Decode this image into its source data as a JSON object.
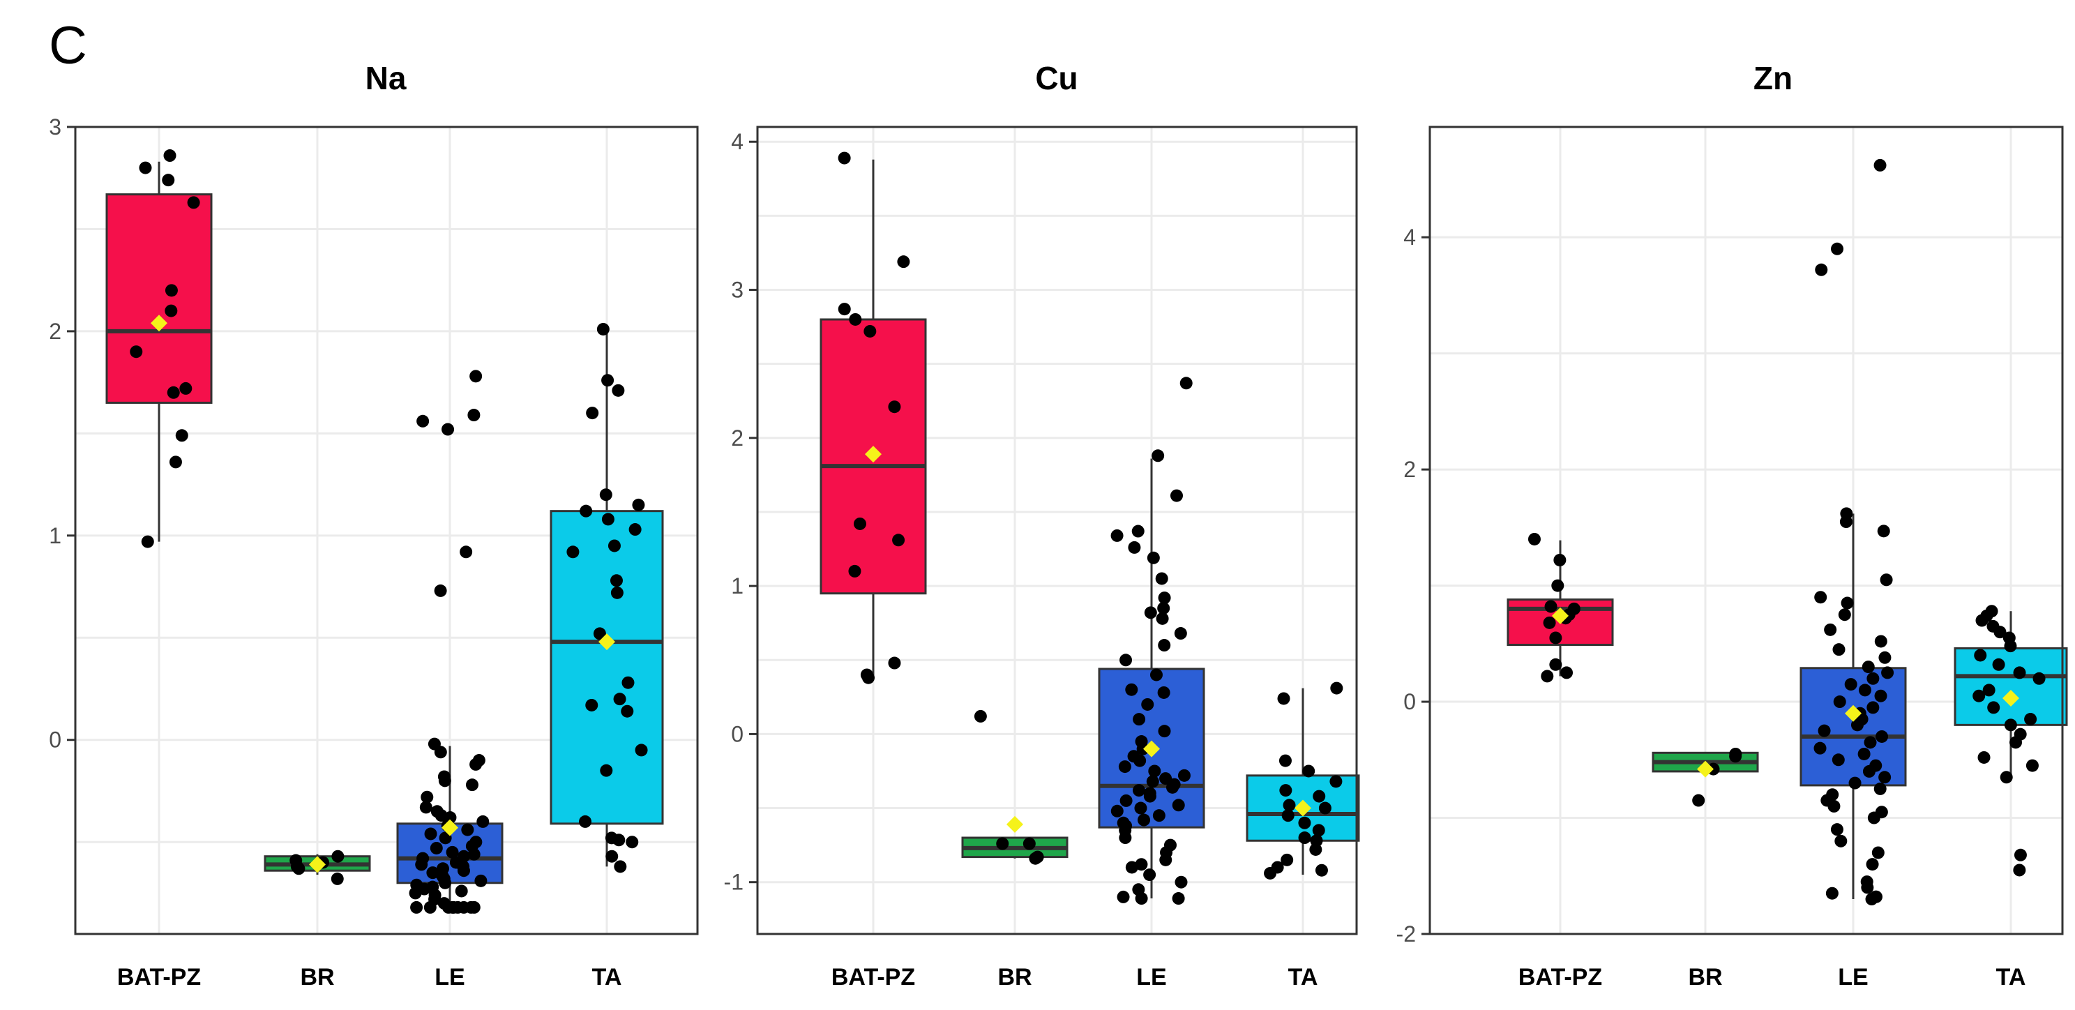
{
  "panel_label": "C",
  "colors": {
    "BAT-PZ": "#f5104b",
    "BR": "#1fa64a",
    "LE": "#2c5fd6",
    "TA": "#0bcbe9",
    "mean_marker": "#f5f21a",
    "points": "#000000",
    "median_line": "#333333"
  },
  "chart_data": [
    {
      "type": "box",
      "title": "Na",
      "categories": [
        "BAT-PZ",
        "BR",
        "LE",
        "TA"
      ],
      "ylim": [
        -0.95,
        3.0
      ],
      "yticks": [
        0,
        1,
        2,
        3
      ],
      "boxes": [
        {
          "category": "BAT-PZ",
          "q1": 1.65,
          "median": 2.0,
          "q3": 2.67,
          "lower_whisker": 0.97,
          "upper_whisker": 2.83,
          "mean": 2.04
        },
        {
          "category": "BR",
          "q1": -0.64,
          "median": -0.61,
          "q3": -0.57,
          "lower_whisker": -0.66,
          "upper_whisker": -0.56,
          "mean": -0.61
        },
        {
          "category": "LE",
          "q1": -0.7,
          "median": -0.58,
          "q3": -0.41,
          "lower_whisker": -0.82,
          "upper_whisker": -0.03,
          "mean": -0.43
        },
        {
          "category": "TA",
          "q1": -0.41,
          "median": 0.48,
          "q3": 1.12,
          "lower_whisker": -0.62,
          "upper_whisker": 2.01,
          "mean": 0.48
        }
      ],
      "points": [
        {
          "category": "BAT-PZ",
          "values": [
            2.86,
            2.8,
            2.74,
            2.63,
            2.2,
            2.1,
            1.9,
            1.72,
            1.7,
            1.49,
            1.36,
            0.97
          ]
        },
        {
          "category": "BR",
          "values": [
            -0.57,
            -0.59,
            -0.6,
            -0.63,
            -0.62,
            -0.68
          ]
        },
        {
          "category": "LE",
          "values": [
            1.78,
            1.59,
            1.56,
            1.52,
            0.92,
            0.73,
            -0.02,
            -0.06,
            -0.1,
            -0.12,
            -0.18,
            -0.2,
            -0.22,
            -0.28,
            -0.33,
            -0.35,
            -0.37,
            -0.38,
            -0.4,
            -0.42,
            -0.44,
            -0.46,
            -0.48,
            -0.5,
            -0.52,
            -0.53,
            -0.55,
            -0.56,
            -0.57,
            -0.58,
            -0.6,
            -0.61,
            -0.62,
            -0.63,
            -0.64,
            -0.65,
            -0.66,
            -0.67,
            -0.68,
            -0.69,
            -0.7,
            -0.71,
            -0.72,
            -0.73,
            -0.74,
            -0.75,
            -0.76,
            -0.78,
            -0.8,
            -0.82,
            -0.82,
            -0.82,
            -0.82,
            -0.82,
            -0.82,
            -0.82,
            -0.82,
            -0.82
          ]
        },
        {
          "category": "TA",
          "values": [
            2.01,
            1.76,
            1.71,
            1.6,
            1.2,
            1.15,
            1.12,
            1.08,
            1.03,
            0.95,
            0.92,
            0.78,
            0.72,
            0.52,
            0.28,
            0.2,
            0.17,
            0.14,
            -0.05,
            -0.15,
            -0.4,
            -0.48,
            -0.49,
            -0.5,
            -0.57,
            -0.62
          ]
        }
      ]
    },
    {
      "type": "box",
      "title": "Cu",
      "categories": [
        "BAT-PZ",
        "BR",
        "LE",
        "TA"
      ],
      "ylim": [
        -1.35,
        4.1
      ],
      "yticks": [
        -1,
        0,
        1,
        2,
        3,
        4
      ],
      "boxes": [
        {
          "category": "BAT-PZ",
          "q1": 0.95,
          "median": 1.81,
          "q3": 2.8,
          "lower_whisker": 0.37,
          "upper_whisker": 3.88,
          "mean": 1.89
        },
        {
          "category": "BR",
          "q1": -0.83,
          "median": -0.77,
          "q3": -0.7,
          "lower_whisker": -0.84,
          "upper_whisker": -0.7,
          "mean": -0.61
        },
        {
          "category": "LE",
          "q1": -0.63,
          "median": -0.35,
          "q3": 0.44,
          "lower_whisker": -1.11,
          "upper_whisker": 1.86,
          "mean": -0.1
        },
        {
          "category": "TA",
          "q1": -0.72,
          "median": -0.54,
          "q3": -0.28,
          "lower_whisker": -0.95,
          "upper_whisker": 0.31,
          "mean": -0.5
        }
      ],
      "points": [
        {
          "category": "BAT-PZ",
          "values": [
            3.89,
            3.19,
            2.87,
            2.8,
            2.72,
            2.21,
            1.42,
            1.31,
            1.1,
            0.48,
            0.4,
            0.38
          ]
        },
        {
          "category": "BR",
          "values": [
            0.12,
            -0.74,
            -0.74,
            -0.83,
            -0.84
          ]
        },
        {
          "category": "LE",
          "values": [
            2.37,
            1.88,
            1.61,
            1.37,
            1.34,
            1.26,
            1.19,
            1.05,
            0.92,
            0.85,
            0.82,
            0.78,
            0.68,
            0.6,
            0.5,
            0.4,
            0.3,
            0.28,
            0.2,
            0.1,
            0.02,
            -0.05,
            -0.1,
            -0.15,
            -0.18,
            -0.22,
            -0.25,
            -0.28,
            -0.3,
            -0.32,
            -0.34,
            -0.36,
            -0.38,
            -0.4,
            -0.42,
            -0.45,
            -0.48,
            -0.5,
            -0.52,
            -0.55,
            -0.58,
            -0.6,
            -0.62,
            -0.65,
            -0.7,
            -0.75,
            -0.8,
            -0.85,
            -0.88,
            -0.9,
            -0.95,
            -1.0,
            -1.05,
            -1.1,
            -1.11,
            -1.11
          ]
        },
        {
          "category": "TA",
          "values": [
            0.31,
            0.24,
            -0.18,
            -0.25,
            -0.32,
            -0.38,
            -0.42,
            -0.48,
            -0.5,
            -0.55,
            -0.6,
            -0.65,
            -0.7,
            -0.72,
            -0.78,
            -0.85,
            -0.9,
            -0.92,
            -0.94
          ]
        }
      ]
    },
    {
      "type": "box",
      "title": "Zn",
      "categories": [
        "BAT-PZ",
        "BR",
        "LE",
        "TA"
      ],
      "ylim": [
        -2.0,
        4.95
      ],
      "yticks": [
        -2,
        0,
        2,
        4
      ],
      "boxes": [
        {
          "category": "BAT-PZ",
          "q1": 0.49,
          "median": 0.8,
          "q3": 0.88,
          "lower_whisker": 0.22,
          "upper_whisker": 1.39,
          "mean": 0.74
        },
        {
          "category": "BR",
          "q1": -0.6,
          "median": -0.52,
          "q3": -0.44,
          "lower_whisker": -0.6,
          "upper_whisker": -0.44,
          "mean": -0.58
        },
        {
          "category": "LE",
          "q1": -0.72,
          "median": -0.3,
          "q3": 0.29,
          "lower_whisker": -1.7,
          "upper_whisker": 1.62,
          "mean": -0.1
        },
        {
          "category": "TA",
          "q1": -0.2,
          "median": 0.22,
          "q3": 0.46,
          "lower_whisker": -0.65,
          "upper_whisker": 0.78,
          "mean": 0.03
        }
      ],
      "points": [
        {
          "category": "BAT-PZ",
          "values": [
            1.4,
            1.22,
            1.0,
            0.82,
            0.8,
            0.75,
            0.72,
            0.68,
            0.55,
            0.32,
            0.25,
            0.22
          ]
        },
        {
          "category": "BR",
          "values": [
            -0.45,
            -0.47,
            -0.58,
            -0.85
          ]
        },
        {
          "category": "LE",
          "values": [
            4.62,
            3.9,
            3.72,
            1.62,
            1.55,
            1.47,
            1.05,
            0.9,
            0.85,
            0.75,
            0.62,
            0.52,
            0.45,
            0.38,
            0.3,
            0.25,
            0.2,
            0.15,
            0.1,
            0.05,
            0.0,
            -0.05,
            -0.1,
            -0.15,
            -0.2,
            -0.25,
            -0.3,
            -0.35,
            -0.4,
            -0.45,
            -0.5,
            -0.55,
            -0.6,
            -0.65,
            -0.7,
            -0.75,
            -0.8,
            -0.85,
            -0.9,
            -0.95,
            -1.0,
            -1.1,
            -1.2,
            -1.3,
            -1.4,
            -1.55,
            -1.6,
            -1.65,
            -1.68,
            -1.68,
            -1.7
          ]
        },
        {
          "category": "TA",
          "values": [
            0.78,
            0.74,
            0.7,
            0.65,
            0.6,
            0.55,
            0.48,
            0.4,
            0.32,
            0.25,
            0.2,
            0.1,
            0.05,
            -0.05,
            -0.15,
            -0.2,
            -0.28,
            -0.35,
            -0.48,
            -0.55,
            -0.65,
            -1.32,
            -1.45
          ]
        }
      ]
    }
  ]
}
